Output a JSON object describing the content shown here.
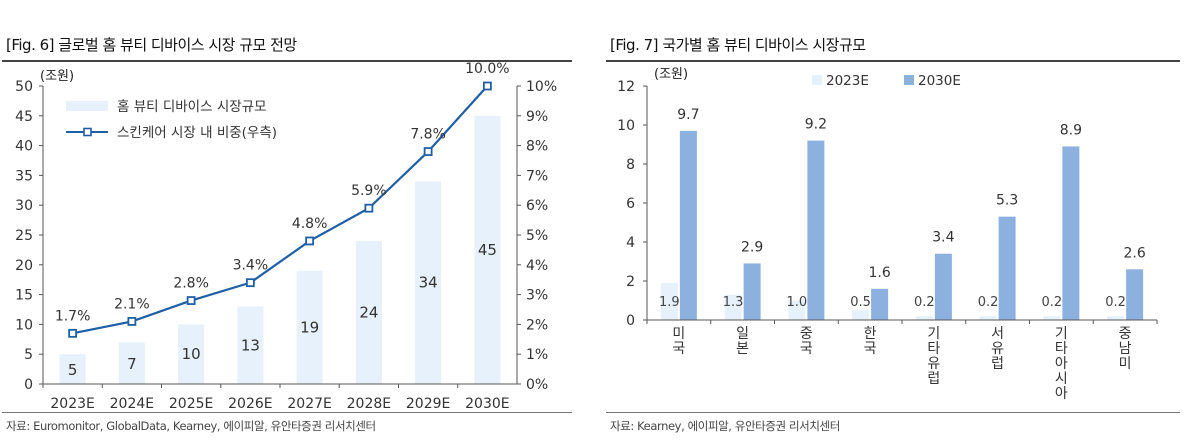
{
  "chart_data": [
    {
      "type": "bar+line",
      "title": "[Fig. 6] 글로벌 홈 뷰티 디바이스 시장 규모 전망",
      "ylabel_left": "(조원)",
      "categories": [
        "2023E",
        "2024E",
        "2025E",
        "2026E",
        "2027E",
        "2028E",
        "2029E",
        "2030E"
      ],
      "series": [
        {
          "name": "홈 뷰티 디바이스 시장규모",
          "type": "bar",
          "axis": "left",
          "values": [
            5,
            7,
            10,
            13,
            19,
            24,
            34,
            45
          ],
          "labels": [
            "5",
            "7",
            "10",
            "13",
            "19",
            "24",
            "34",
            "45"
          ]
        },
        {
          "name": "스킨케어 시장 내 비중(우측)",
          "type": "line",
          "axis": "right",
          "values": [
            1.7,
            2.1,
            2.8,
            3.4,
            4.8,
            5.9,
            7.8,
            10.0
          ],
          "labels": [
            "1.7%",
            "2.1%",
            "2.8%",
            "3.4%",
            "4.8%",
            "5.9%",
            "7.8%",
            "10.0%"
          ]
        }
      ],
      "ylim_left": [
        0,
        50
      ],
      "yticks_left": [
        "0",
        "5",
        "10",
        "15",
        "20",
        "25",
        "30",
        "35",
        "40",
        "45",
        "50"
      ],
      "ylim_right": [
        0,
        10
      ],
      "yticks_right": [
        "0%",
        "1%",
        "2%",
        "3%",
        "4%",
        "5%",
        "6%",
        "7%",
        "8%",
        "9%",
        "10%"
      ],
      "legend": "top-left",
      "grid": false,
      "source": "자료: Euromonitor, GlobalData, Kearney, 에이피알, 유안타증권 리서치센터",
      "colors": {
        "bar": "#e6f1fb",
        "line": "#1f5fa6",
        "marker_fill": "#ffffff"
      }
    },
    {
      "type": "bar",
      "title": "[Fig. 7] 국가별 홈 뷰티 디바이스 시장규모",
      "ylabel": "(조원)",
      "categories": [
        "미국",
        "일본",
        "중국",
        "한국",
        "기타유럽",
        "서유럽",
        "기타아시아",
        "중남미"
      ],
      "series": [
        {
          "name": "2023E",
          "values": [
            1.9,
            1.3,
            1.0,
            0.5,
            0.2,
            0.2,
            0.2,
            0.2
          ],
          "labels": [
            "1.9",
            "1.3",
            "1.0",
            "0.5",
            "0.2",
            "0.2",
            "0.2",
            "0.2"
          ]
        },
        {
          "name": "2030E",
          "values": [
            9.7,
            2.9,
            9.2,
            1.6,
            3.4,
            5.3,
            8.9,
            2.6
          ],
          "labels": [
            "9.7",
            "2.9",
            "9.2",
            "1.6",
            "3.4",
            "5.3",
            "8.9",
            "2.6"
          ]
        }
      ],
      "ylim": [
        0,
        12
      ],
      "yticks": [
        "0",
        "2",
        "4",
        "6",
        "8",
        "10",
        "12"
      ],
      "legend": "top-center",
      "grid": false,
      "source": "자료: Kearney, 에이피알, 유안타증권 리서치센터",
      "colors": {
        "2023E": "#e6f1fb",
        "2030E": "#8db1de"
      }
    }
  ]
}
